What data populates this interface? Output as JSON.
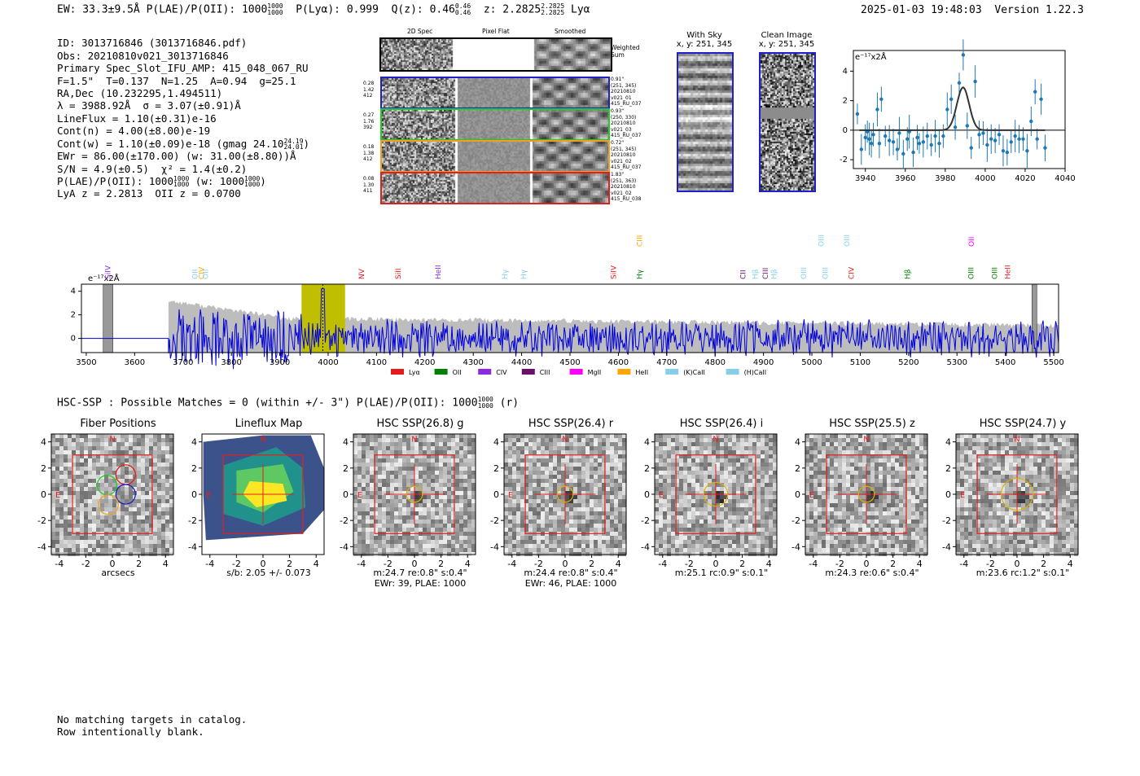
{
  "header": {
    "left": "EW: 33.3±9.5Å  P(LAE)/P(OII): 1000",
    "plae_sup": "1000",
    "plae_sub": "1000",
    "plya": "P(Lyα): 0.999",
    "qz": "Q(z): 0.46",
    "qz_sup": "0.46",
    "qz_sub": "0.46",
    "z": "z: 2.2825",
    "z_sup": "2.2825",
    "z_sub": "2.2825",
    "line": "Lyα",
    "timestamp": "2025-01-03 19:48:03",
    "version": "Version 1.22.3"
  },
  "info_lines": [
    "ID: 3013716846 (3013716846.pdf)",
    "Obs: 20210810v021_3013716846",
    "Primary Spec_Slot_IFU_AMP: 415_048_067_RU",
    "F=1.5\"  T=0.137  N=1.25  A=0.94  g=25.1",
    "RA,Dec (10.232295,1.494511)",
    "λ = 3988.92Å  σ = 3.07(±0.91)Å",
    "LineFlux = 1.10(±0.31)e-16",
    "Cont(n) = 4.00(±8.00)e-19",
    "Cont(w) = 1.10(±0.09)e-18 (gmag 24.10",
    "EWr = 86.00(±170.00) (w: 31.00(±8.80))Å",
    "S/N = 4.9(±0.5)  χ² = 1.4(±0.2)",
    "P(LAE)/P(OII): 1000",
    "LyA z = 2.2813  OII z = 0.0700"
  ],
  "info_extra": {
    "gmag_sup": "24.19",
    "gmag_sub": "24.01",
    "plae_sup": "1000",
    "plae_sub": "1000",
    "plae_w": "(w: 1000",
    "plae_w_sup": "1000",
    "plae_w_sub": "1000",
    "close": ")"
  },
  "cutouts": {
    "col_titles": [
      "2D Spec",
      "Pixel Flat",
      "Smoothed"
    ],
    "weighted_label": "Weighted Sum",
    "rows": [
      {
        "left": [
          "0.28",
          "1.42",
          "412"
        ],
        "right": [
          "0.91\"",
          "(251, 345)",
          "20210810",
          "v021_01",
          "415_RU_037"
        ],
        "color": "#1f1fd0"
      },
      {
        "left": [
          "0.27",
          "1.76",
          "392"
        ],
        "right": [
          "0.93\"",
          "(250, 330)",
          "20210810",
          "v021_03",
          "415_RU_037"
        ],
        "color": "#22cc22"
      },
      {
        "left": [
          "0.18",
          "1.38",
          "412"
        ],
        "right": [
          "0.72\"",
          "(251, 345)",
          "20210810",
          "v021_02",
          "415_RU_037"
        ],
        "color": "#f0a020"
      },
      {
        "left": [
          "0.08",
          "1.30",
          "411"
        ],
        "right": [
          "1.83\"",
          "(251, 363)",
          "20210810",
          "v021_02",
          "415_RU_038"
        ],
        "color": "#e02020"
      }
    ]
  },
  "sky": {
    "with_sky_title": "With Sky",
    "with_sky_coords": "x, y: 251, 345",
    "clean_title": "Clean Image",
    "clean_coords": "x, y: 251, 345"
  },
  "colors": {
    "blue": "#1f1fd0",
    "spec_blue": "#0000dd",
    "gray": "#bdbdbd",
    "olive": "#bfbf00",
    "point_blue": "#1f77b4",
    "red": "#e02020"
  },
  "chart_data": [
    {
      "name": "line-fit-zoom",
      "type": "scatter",
      "ylabel": "e⁻¹⁷x2Å",
      "xlim": [
        3934,
        4040
      ],
      "ylim": [
        -2.6,
        5.4
      ],
      "xticks": [
        3940,
        3960,
        3980,
        4000,
        4020,
        4040
      ],
      "yticks": [
        -2,
        0,
        2,
        4
      ],
      "points": [
        [
          3936,
          1.1
        ],
        [
          3938,
          -1.3
        ],
        [
          3940,
          -0.5
        ],
        [
          3941,
          -0.1
        ],
        [
          3942,
          -0.6
        ],
        [
          3943,
          -0.9
        ],
        [
          3944,
          -0.3
        ],
        [
          3946,
          1.4
        ],
        [
          3947,
          -0.9
        ],
        [
          3948,
          2.1
        ],
        [
          3950,
          -0.4
        ],
        [
          3952,
          -0.7
        ],
        [
          3954,
          -0.8
        ],
        [
          3956,
          -1.3
        ],
        [
          3957,
          -0.2
        ],
        [
          3959,
          -1.6
        ],
        [
          3961,
          -0.6
        ],
        [
          3962,
          -0.1
        ],
        [
          3964,
          -1.5
        ],
        [
          3966,
          -0.5
        ],
        [
          3967,
          -0.9
        ],
        [
          3969,
          -0.8
        ],
        [
          3971,
          -0.4
        ],
        [
          3973,
          -1.0
        ],
        [
          3975,
          -0.4
        ],
        [
          3977,
          -0.9
        ],
        [
          3979,
          -0.4
        ],
        [
          3981,
          1.4
        ],
        [
          3983,
          2.1
        ],
        [
          3985,
          0.2
        ],
        [
          3987,
          3.2
        ],
        [
          3989,
          5.1
        ],
        [
          3991,
          0.3
        ],
        [
          3993,
          -1.2
        ],
        [
          3995,
          3.3
        ],
        [
          3997,
          -0.3
        ],
        [
          3999,
          -0.2
        ],
        [
          4001,
          -1.0
        ],
        [
          4003,
          -0.6
        ],
        [
          4005,
          -0.7
        ],
        [
          4007,
          -0.3
        ],
        [
          4009,
          -1.4
        ],
        [
          4011,
          -1.5
        ],
        [
          4013,
          -0.8
        ],
        [
          4015,
          -0.4
        ],
        [
          4017,
          -0.6
        ],
        [
          4019,
          -0.6
        ],
        [
          4021,
          -1.4
        ],
        [
          4023,
          0.6
        ],
        [
          4025,
          2.6
        ],
        [
          4026,
          -0.6
        ],
        [
          4028,
          2.1
        ],
        [
          4030,
          -1.2
        ]
      ],
      "fit": {
        "amplitude": 2.9,
        "center": 3988.9,
        "sigma": 3.07,
        "baseline": 0.0,
        "range": [
          3937,
          4030
        ]
      }
    },
    {
      "name": "full-spectrum",
      "type": "line",
      "ylabel": "e⁻¹⁷x2Å",
      "xlim": [
        3490,
        5510
      ],
      "ylim": [
        -1.2,
        4.6
      ],
      "xticks": [
        3500,
        3600,
        3700,
        3800,
        3900,
        4000,
        4100,
        4200,
        4300,
        4400,
        4500,
        4600,
        4700,
        4800,
        4900,
        5000,
        5100,
        5200,
        5300,
        5400,
        5500
      ],
      "yticks": [
        0,
        2,
        4
      ],
      "highlight_range": [
        3945,
        4035
      ],
      "masked_ranges": [
        [
          3535,
          3555
        ],
        [
          5455,
          5465
        ]
      ],
      "data_start": 3670,
      "legend": [
        {
          "label": "Lyα",
          "color": "#e41a1c"
        },
        {
          "label": "OII",
          "color": "#008000"
        },
        {
          "label": "CIV",
          "color": "#8a2be2"
        },
        {
          "label": "CIII",
          "color": "#6b0f6b"
        },
        {
          "label": "MgII",
          "color": "#ff00ff"
        },
        {
          "label": "HeII",
          "color": "#ffa500"
        },
        {
          "label": "(K)CaII",
          "color": "#87ceeb"
        },
        {
          "label": "(H)CaII",
          "color": "#87ceeb"
        }
      ],
      "line_markers": [
        {
          "label": "SiIV",
          "x": 3545,
          "level": 0,
          "color": "#8a2be2"
        },
        {
          "label": "OII",
          "x": 3725,
          "level": 0,
          "color": "#87ceeb"
        },
        {
          "label": "CIV",
          "x": 3738,
          "level": 0,
          "color": "#ffa500"
        },
        {
          "label": "OII",
          "x": 3747,
          "level": 0,
          "color": "#87ceeb"
        },
        {
          "label": "NV",
          "x": 4069,
          "level": 0,
          "color": "#e41a1c"
        },
        {
          "label": "SiII",
          "x": 4145,
          "level": 0,
          "color": "#e41a1c"
        },
        {
          "label": "HeII",
          "x": 4227,
          "level": 0,
          "color": "#8a2be2"
        },
        {
          "label": "Hγ",
          "x": 4365,
          "level": 0,
          "color": "#87ceeb"
        },
        {
          "label": "Hγ",
          "x": 4404,
          "level": 0,
          "color": "#87ceeb"
        },
        {
          "label": "SiIV",
          "x": 4590,
          "level": 0,
          "color": "#e41a1c"
        },
        {
          "label": "CIII",
          "x": 4644,
          "level": 1,
          "color": "#ffa500"
        },
        {
          "label": "Hγ",
          "x": 4644,
          "level": 0,
          "color": "#008000"
        },
        {
          "label": "CII",
          "x": 4858,
          "level": 0,
          "color": "#6b0f6b"
        },
        {
          "label": "Hβ",
          "x": 4883,
          "level": 0,
          "color": "#87ceeb"
        },
        {
          "label": "CIII",
          "x": 4904,
          "level": 0,
          "color": "#6b0f6b"
        },
        {
          "label": "Hβ",
          "x": 4922,
          "level": 0,
          "color": "#87ceeb"
        },
        {
          "label": "OIII",
          "x": 4983,
          "level": 0,
          "color": "#87ceeb"
        },
        {
          "label": "OIII",
          "x": 5019,
          "level": 1,
          "color": "#87ceeb"
        },
        {
          "label": "OIII",
          "x": 5028,
          "level": 0,
          "color": "#87ceeb"
        },
        {
          "label": "OIII",
          "x": 5072,
          "level": 1,
          "color": "#87ceeb"
        },
        {
          "label": "CIV",
          "x": 5082,
          "level": 0,
          "color": "#e41a1c"
        },
        {
          "label": "Hβ",
          "x": 5198,
          "level": 0,
          "color": "#008000"
        },
        {
          "label": "OII",
          "x": 5330,
          "level": 1,
          "color": "#ff00ff"
        },
        {
          "label": "OIII",
          "x": 5329,
          "level": 0,
          "color": "#008000"
        },
        {
          "label": "OIII",
          "x": 5378,
          "level": 0,
          "color": "#008000"
        },
        {
          "label": "HeII",
          "x": 5405,
          "level": 0,
          "color": "#e41a1c"
        }
      ]
    }
  ],
  "hsc": {
    "summary": "HSC-SSP : Possible Matches = 0 (within +/- 3\")  P(LAE)/P(OII): 1000",
    "summary_sup": "1000",
    "summary_sub": "1000",
    "summary_tail": "(r)",
    "panels": [
      {
        "title": "Fiber Positions",
        "cap1": "arcsecs",
        "cap2": "",
        "kind": "fiber"
      },
      {
        "title": "Lineflux Map",
        "cap1": "s/b: 2.05 +/- 0.073",
        "cap2": "",
        "kind": "flux"
      },
      {
        "title": "HSC SSP(26.8) g",
        "cap1": "m:24.7  re:0.8\"  s:0.4\"",
        "cap2": "EWr: 39, PLAE: 1000",
        "kind": "img",
        "aperture": 0.6
      },
      {
        "title": "HSC SSP(26.4) r",
        "cap1": "m:24.4  re:0.8\"  s:0.4\"",
        "cap2": "EWr: 46, PLAE: 1000",
        "kind": "img",
        "aperture": 0.6
      },
      {
        "title": "HSC SSP(26.4) i",
        "cap1": "m:25.1 rc:0.9\"  s:0.1\"",
        "cap2": "",
        "kind": "img",
        "aperture": 0.9
      },
      {
        "title": "HSC SSP(25.5) z",
        "cap1": "m:24.3  re:0.6\"  s:0.4\"",
        "cap2": "",
        "kind": "img",
        "aperture": 0.6
      },
      {
        "title": "HSC SSP(24.7) y",
        "cap1": "m:23.6 rc:1.2\"  s:0.1\"",
        "cap2": "",
        "kind": "img",
        "aperture": 1.2
      }
    ],
    "axis_ticks": [
      -4,
      -2,
      0,
      2,
      4
    ],
    "north": "N",
    "east": "E"
  },
  "footer": [
    "No matching targets in catalog.",
    "Row intentionally blank."
  ]
}
